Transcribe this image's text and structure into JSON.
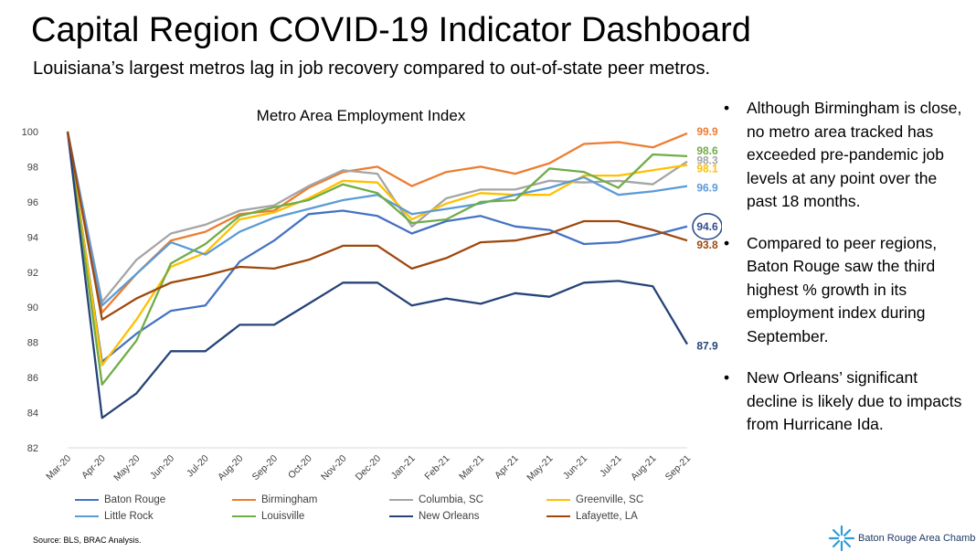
{
  "header": {
    "title": "Capital Region COVID-19 Indicator Dashboard",
    "subtitle": "Louisiana’s largest metros lag in job recovery compared to out-of-state peer metros."
  },
  "bullets": [
    "Although Birmingham is close, no metro area tracked has exceeded pre-pandemic job levels at any point over the past 18 months.",
    "Compared to peer regions, Baton Rouge saw the third highest % growth in its employment index during September.",
    "New Orleans’ significant decline is likely due to impacts from Hurricane Ida."
  ],
  "bullet_glyph": "•",
  "footer": {
    "source": "Source: BLS, BRAC Analysis.",
    "logo_text": "Baton Rouge Area Chamber."
  },
  "chart_data": {
    "type": "line",
    "title": "Metro Area Employment Index",
    "xlabel": "",
    "ylabel": "",
    "ylim": [
      82,
      100
    ],
    "yticks": [
      82,
      84,
      86,
      88,
      90,
      92,
      94,
      96,
      98,
      100
    ],
    "grid": false,
    "legend_position": "bottom",
    "x": [
      "Mar-20",
      "Apr-20",
      "May-20",
      "Jun-20",
      "Jul-20",
      "Aug-20",
      "Sep-20",
      "Oct-20",
      "Nov-20",
      "Dec-20",
      "Jan-21",
      "Feb-21",
      "Mar-21",
      "Apr-21",
      "May-21",
      "Jun-21",
      "Jul-21",
      "Aug-21",
      "Sep-21"
    ],
    "series": [
      {
        "name": "Baton Rouge",
        "color": "#4472c4",
        "values": [
          100,
          86.9,
          88.5,
          89.8,
          90.1,
          92.6,
          93.8,
          95.3,
          95.5,
          95.2,
          94.2,
          94.9,
          95.2,
          94.6,
          94.4,
          93.6,
          93.7,
          94.1,
          94.6
        ],
        "end_label": "94.6",
        "end_label_circled": true,
        "end_label_color": "#2f4f8f"
      },
      {
        "name": "Birmingham",
        "color": "#ed7d31",
        "values": [
          100,
          89.7,
          91.9,
          93.8,
          94.3,
          95.3,
          95.5,
          96.8,
          97.7,
          98.0,
          96.9,
          97.7,
          98.0,
          97.6,
          98.2,
          99.3,
          99.4,
          99.1,
          99.9
        ],
        "end_label": "99.9",
        "end_label_color": "#ed7d31"
      },
      {
        "name": "Columbia, SC",
        "color": "#a5a5a5",
        "values": [
          100,
          90.3,
          92.7,
          94.2,
          94.7,
          95.5,
          95.8,
          96.9,
          97.8,
          97.6,
          94.6,
          96.2,
          96.7,
          96.7,
          97.2,
          97.1,
          97.2,
          97.0,
          98.3
        ],
        "end_label": "98.3",
        "end_label_color": "#a5a5a5"
      },
      {
        "name": "Greenville, SC",
        "color": "#ffc000",
        "values": [
          100,
          86.7,
          89.3,
          92.3,
          93.1,
          95.0,
          95.4,
          96.2,
          97.2,
          97.1,
          95.0,
          95.9,
          96.5,
          96.4,
          96.4,
          97.5,
          97.5,
          97.8,
          98.1
        ],
        "end_label": "98.1",
        "end_label_color": "#ffc000"
      },
      {
        "name": "Little Rock",
        "color": "#5b9bd5",
        "values": [
          100,
          90.1,
          91.9,
          93.7,
          93.0,
          94.3,
          95.1,
          95.6,
          96.1,
          96.4,
          95.3,
          95.6,
          95.9,
          96.4,
          96.8,
          97.4,
          96.4,
          96.6,
          96.9
        ],
        "end_label": "96.9",
        "end_label_color": "#5b9bd5"
      },
      {
        "name": "Louisville",
        "color": "#70ad47",
        "values": [
          100,
          85.6,
          88.1,
          92.5,
          93.6,
          95.2,
          95.7,
          96.1,
          97.0,
          96.5,
          94.8,
          95.0,
          96.0,
          96.1,
          97.9,
          97.7,
          96.8,
          98.7,
          98.6
        ],
        "end_label": "98.6",
        "end_label_color": "#70ad47"
      },
      {
        "name": "New Orleans",
        "color": "#264478",
        "values": [
          100,
          83.7,
          85.1,
          87.5,
          87.5,
          89.0,
          89.0,
          90.2,
          91.4,
          91.4,
          90.1,
          90.5,
          90.2,
          90.8,
          90.6,
          91.4,
          91.5,
          91.2,
          87.9
        ],
        "end_label": "87.9",
        "end_label_color": "#264478"
      },
      {
        "name": "Lafayette, LA",
        "color": "#9e480e",
        "values": [
          100,
          89.3,
          90.5,
          91.4,
          91.8,
          92.3,
          92.2,
          92.7,
          93.5,
          93.5,
          92.2,
          92.8,
          93.7,
          93.8,
          94.2,
          94.9,
          94.9,
          94.4,
          93.8
        ],
        "end_label": "93.8",
        "end_label_color": "#9e480e"
      }
    ]
  }
}
